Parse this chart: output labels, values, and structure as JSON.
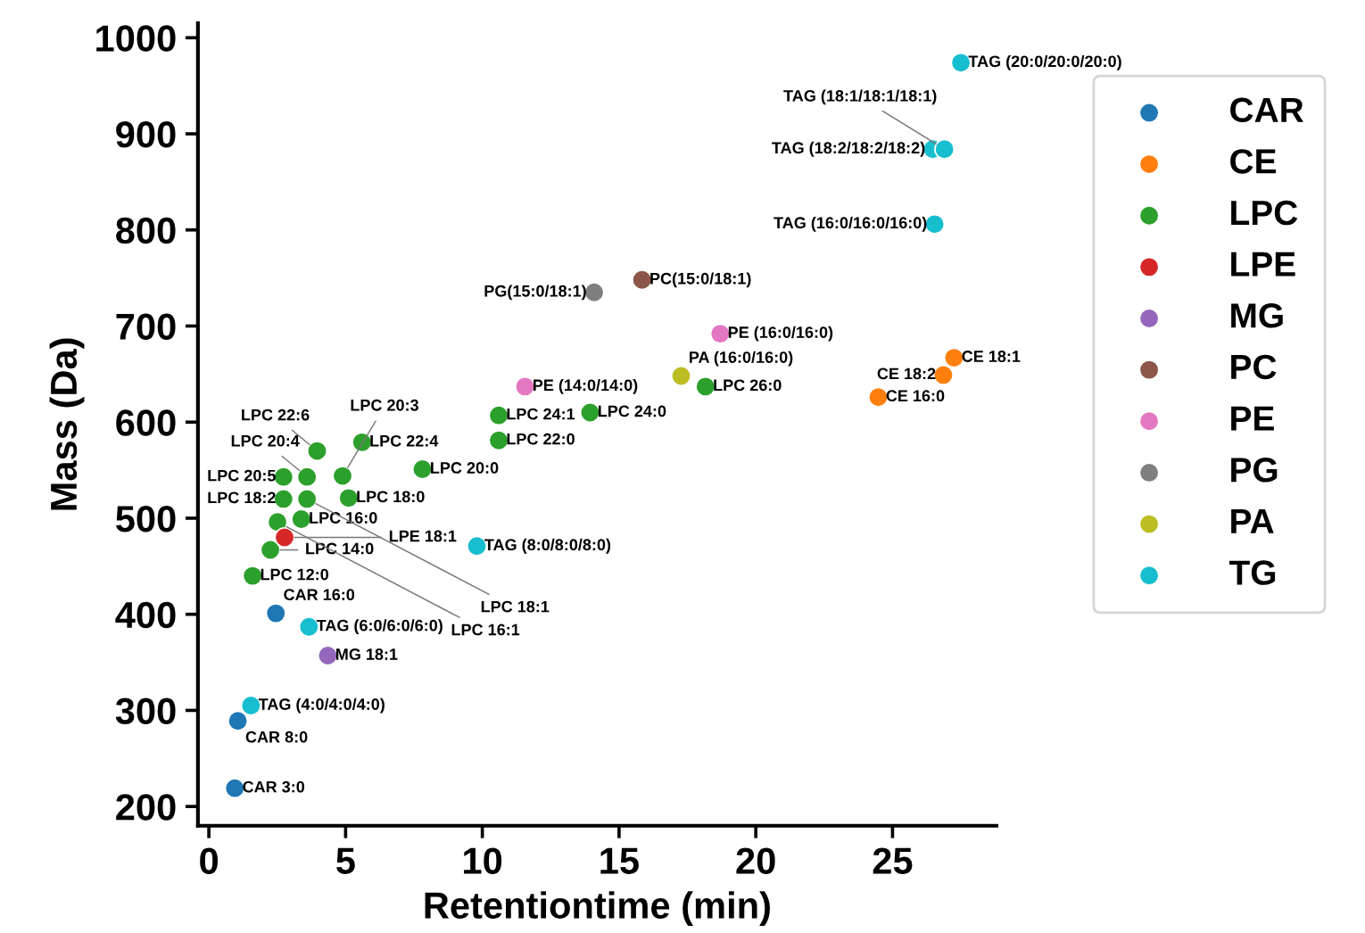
{
  "chart_data": {
    "type": "scatter",
    "xlabel": "Retentiontime (min)",
    "ylabel": "Mass (Da)",
    "xlim": [
      -0.4,
      28.8
    ],
    "ylim": [
      180,
      1015
    ],
    "xticks": [
      0,
      5,
      10,
      15,
      20,
      25
    ],
    "yticks": [
      200,
      300,
      400,
      500,
      600,
      700,
      800,
      900,
      1000
    ],
    "grid": false,
    "legend": "right",
    "marker": "circle",
    "series": [
      {
        "name": "CAR",
        "color": "#1f77b4",
        "x": [
          0.95,
          1.06,
          2.45
        ],
        "values": [
          219,
          289,
          401
        ]
      },
      {
        "name": "CE",
        "color": "#ff7f0e",
        "x": [
          24.48,
          26.86,
          27.25
        ],
        "values": [
          626,
          649,
          667
        ]
      },
      {
        "name": "LPC",
        "color": "#2ca02c",
        "x": [
          1.6,
          2.25,
          2.51,
          3.38,
          2.73,
          3.59,
          5.11,
          2.73,
          3.59,
          4.89,
          7.81,
          3.96,
          5.6,
          10.6,
          10.6,
          13.94,
          18.16
        ],
        "values": [
          440,
          467,
          496,
          499,
          520,
          520,
          521,
          543,
          543,
          544,
          551,
          570,
          579,
          581,
          607,
          610,
          637
        ]
      },
      {
        "name": "LPE",
        "color": "#d62728",
        "x": [
          2.77
        ],
        "values": [
          480
        ]
      },
      {
        "name": "MG",
        "color": "#9467bd",
        "x": [
          4.35
        ],
        "values": [
          357
        ]
      },
      {
        "name": "PC",
        "color": "#8c564b",
        "x": [
          15.84
        ],
        "values": [
          748
        ]
      },
      {
        "name": "PE",
        "color": "#e377c2",
        "x": [
          11.56,
          18.7
        ],
        "values": [
          637,
          692
        ]
      },
      {
        "name": "PG",
        "color": "#7f7f7f",
        "x": [
          14.09
        ],
        "values": [
          735
        ]
      },
      {
        "name": "PA",
        "color": "#bcbd22",
        "x": [
          17.27
        ],
        "values": [
          648
        ]
      },
      {
        "name": "TG",
        "color": "#17becf",
        "x": [
          1.54,
          3.66,
          9.8,
          26.54,
          26.47,
          26.9,
          27.5
        ],
        "values": [
          305,
          387,
          471,
          806,
          884,
          884,
          974
        ]
      }
    ],
    "annotations": [
      {
        "text": "CAR 3:0",
        "x": 0.95,
        "y": 219
      },
      {
        "text": "CAR 8:0",
        "x": 1.06,
        "y": 289
      },
      {
        "text": "CAR 16:0",
        "x": 2.45,
        "y": 401
      },
      {
        "text": "CE 16:0",
        "x": 24.48,
        "y": 626
      },
      {
        "text": "CE 18:2",
        "x": 26.86,
        "y": 649
      },
      {
        "text": "CE 18:1",
        "x": 27.25,
        "y": 667
      },
      {
        "text": "LPC 12:0",
        "x": 1.6,
        "y": 440
      },
      {
        "text": "LPC 14:0",
        "x": 2.25,
        "y": 467
      },
      {
        "text": "LPC 16:1",
        "x": 2.51,
        "y": 496
      },
      {
        "text": "LPC 16:0",
        "x": 3.38,
        "y": 499
      },
      {
        "text": "LPC 18:2",
        "x": 2.73,
        "y": 520
      },
      {
        "text": "LPC 18:1",
        "x": 3.59,
        "y": 520
      },
      {
        "text": "LPC 18:0",
        "x": 5.11,
        "y": 521
      },
      {
        "text": "LPC 20:5",
        "x": 2.73,
        "y": 543
      },
      {
        "text": "LPC 20:4",
        "x": 3.59,
        "y": 543
      },
      {
        "text": "LPC 20:3",
        "x": 4.89,
        "y": 544
      },
      {
        "text": "LPC 20:0",
        "x": 7.81,
        "y": 551
      },
      {
        "text": "LPC 22:6",
        "x": 3.96,
        "y": 570
      },
      {
        "text": "LPC 22:4",
        "x": 5.6,
        "y": 579
      },
      {
        "text": "LPC 22:0",
        "x": 10.6,
        "y": 581
      },
      {
        "text": "LPC 24:1",
        "x": 10.6,
        "y": 607
      },
      {
        "text": "LPC 24:0",
        "x": 13.94,
        "y": 610
      },
      {
        "text": "LPC 26:0",
        "x": 18.16,
        "y": 637
      },
      {
        "text": "LPE 18:1",
        "x": 2.77,
        "y": 480
      },
      {
        "text": "MG 18:1",
        "x": 4.35,
        "y": 357
      },
      {
        "text": "PC(15:0/18:1)",
        "x": 15.84,
        "y": 748
      },
      {
        "text": "PE (14:0/14:0)",
        "x": 11.56,
        "y": 637
      },
      {
        "text": "PE (16:0/16:0)",
        "x": 18.7,
        "y": 692
      },
      {
        "text": "PG(15:0/18:1)",
        "x": 14.09,
        "y": 735
      },
      {
        "text": "PA (16:0/16:0)",
        "x": 17.27,
        "y": 648
      },
      {
        "text": "TAG (4:0/4:0/4:0)",
        "x": 1.54,
        "y": 305
      },
      {
        "text": "TAG (6:0/6:0/6:0)",
        "x": 3.66,
        "y": 387
      },
      {
        "text": "TAG (8:0/8:0/8:0)",
        "x": 9.8,
        "y": 471
      },
      {
        "text": "TAG (16:0/16:0/16:0)",
        "x": 26.54,
        "y": 806
      },
      {
        "text": "TAG (18:2/18:2/18:2)",
        "x": 26.47,
        "y": 884
      },
      {
        "text": "TAG (18:1/18:1/18:1)",
        "x": 26.9,
        "y": 884
      },
      {
        "text": "TAG (20:0/20:0/20:0)",
        "x": 27.5,
        "y": 974
      }
    ]
  }
}
